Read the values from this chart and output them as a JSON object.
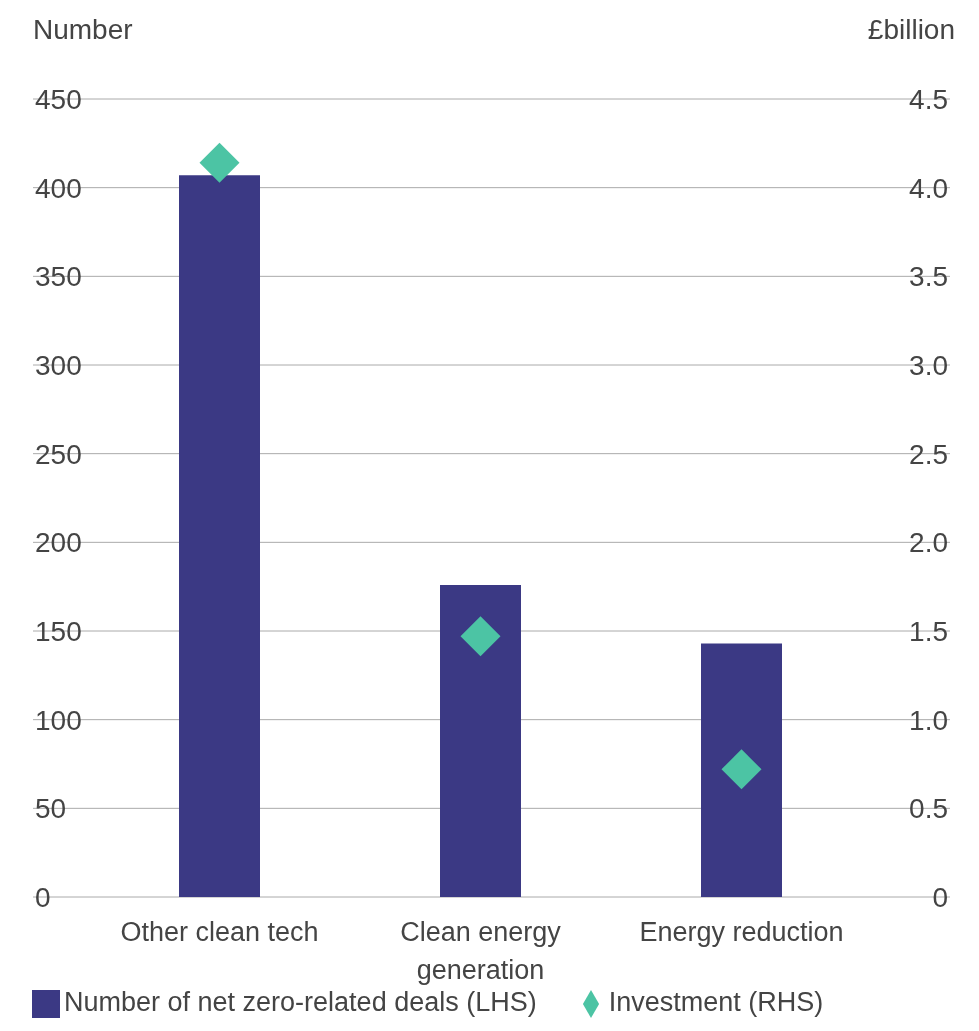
{
  "chart_data": {
    "type": "bar",
    "ylabel": "Number",
    "y2label": "£billion",
    "categories": [
      "Other clean tech",
      "Clean energy generation",
      "Energy reduction"
    ],
    "series": [
      {
        "name": "Number of net zero-related deals (LHS)",
        "color": "#3b3984",
        "values": [
          407,
          176,
          143
        ]
      },
      {
        "name": "Investment (RHS)",
        "type": "scatter",
        "axis": "y2",
        "color": "#4cc4a4",
        "marker": "diamond",
        "values": [
          4.14,
          1.47,
          0.72
        ]
      }
    ],
    "ylim": [
      0,
      450
    ],
    "yticks": [
      0,
      50,
      100,
      150,
      200,
      250,
      300,
      350,
      400,
      450
    ],
    "y2lim": [
      0,
      4.5
    ],
    "y2ticks": [
      0,
      0.5,
      {
        "value": 1,
        "label": "1.0"
      },
      1.5,
      {
        "value": 2,
        "label": "2.0"
      },
      2.5,
      {
        "value": 3,
        "label": "3.0"
      },
      3.5,
      {
        "value": 4,
        "label": "4.0"
      },
      4.5
    ],
    "grid": "y",
    "legend": "bottom left"
  }
}
